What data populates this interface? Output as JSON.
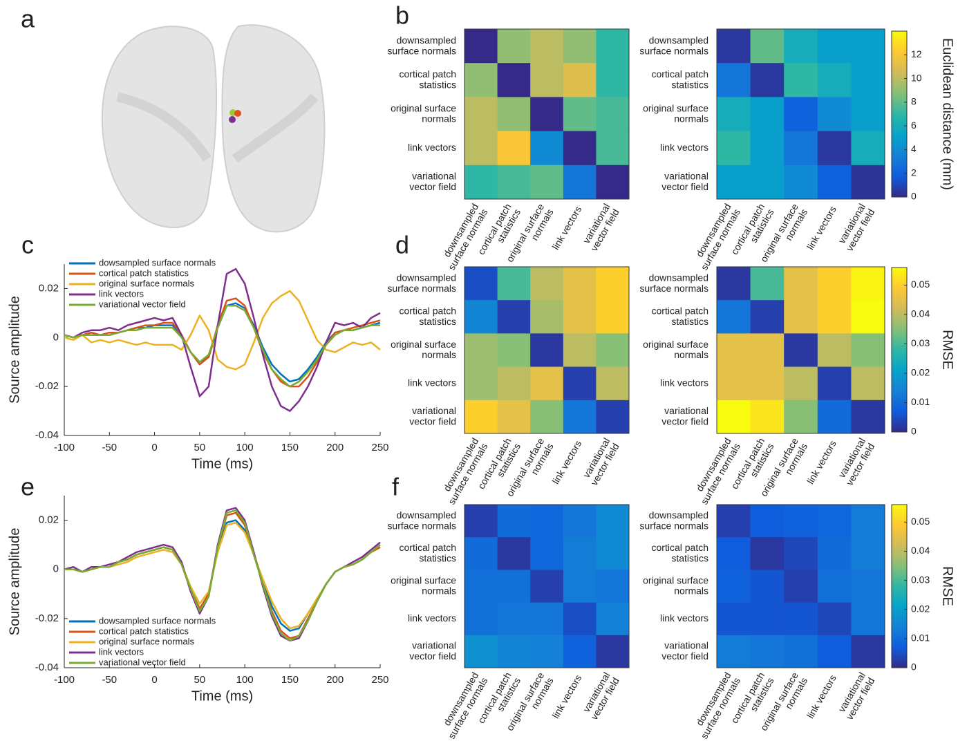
{
  "chart_data": [
    {
      "type": "image",
      "panel": "a"
    },
    {
      "type": "heatmap",
      "panel": "b",
      "categories": [
        "downsampled\nsurface normals",
        "cortical patch\nstatistics",
        "original surface\nnormals",
        "link vectors",
        "variational\nvector field"
      ],
      "matrices": [
        [
          [
            0,
            9,
            10,
            9,
            7
          ],
          [
            9,
            0,
            10,
            11,
            7
          ],
          [
            10,
            9,
            0,
            8,
            7.5
          ],
          [
            10,
            12,
            4,
            0,
            7.5
          ],
          [
            7,
            7.5,
            8,
            3,
            0
          ]
        ],
        [
          [
            0.5,
            8,
            6,
            5,
            5
          ],
          [
            3,
            0.5,
            7,
            6,
            5
          ],
          [
            6,
            5,
            2,
            4,
            5
          ],
          [
            7,
            5,
            3,
            0.5,
            6
          ],
          [
            5,
            5,
            4,
            2,
            0.3
          ]
        ]
      ],
      "zlim": [
        0,
        14
      ],
      "zticks": [
        0,
        2,
        4,
        6,
        8,
        10,
        12
      ],
      "zlabel": "Euclidean distance (mm)",
      "colormap": [
        "#352a87",
        "#0f5cdd",
        "#1481d6",
        "#06a4ca",
        "#2eb7a4",
        "#87bf77",
        "#d1bb59",
        "#fec832",
        "#f9fb0e"
      ]
    },
    {
      "type": "line",
      "panel": "c",
      "xlabel": "Time (ms)",
      "ylabel": "Source amplitude",
      "x": [
        -100,
        -90,
        -80,
        -70,
        -60,
        -50,
        -40,
        -30,
        -20,
        -10,
        0,
        10,
        20,
        30,
        40,
        50,
        60,
        70,
        80,
        90,
        100,
        110,
        120,
        130,
        140,
        150,
        160,
        170,
        180,
        190,
        200,
        210,
        220,
        230,
        240,
        250
      ],
      "series": [
        {
          "name": "dowsampled surface normals",
          "color": "#0072bd",
          "values": [
            0.001,
            0,
            0.001,
            0.002,
            0.001,
            0.001,
            0.002,
            0.003,
            0.004,
            0.004,
            0.005,
            0.005,
            0.005,
            0.001,
            -0.006,
            -0.01,
            -0.008,
            0.004,
            0.013,
            0.014,
            0.012,
            0.005,
            -0.004,
            -0.011,
            -0.015,
            -0.018,
            -0.017,
            -0.013,
            -0.008,
            -0.002,
            0.002,
            0.003,
            0.003,
            0.004,
            0.005,
            0.006
          ]
        },
        {
          "name": "cortical patch statistics",
          "color": "#d95319",
          "values": [
            0.001,
            0,
            0.001,
            0.002,
            0.001,
            0.002,
            0.002,
            0.003,
            0.004,
            0.005,
            0.005,
            0.006,
            0.006,
            0.001,
            -0.006,
            -0.011,
            -0.008,
            0.005,
            0.015,
            0.016,
            0.013,
            0.004,
            -0.006,
            -0.013,
            -0.018,
            -0.02,
            -0.02,
            -0.016,
            -0.01,
            -0.003,
            0.002,
            0.003,
            0.004,
            0.005,
            0.006,
            0.007
          ]
        },
        {
          "name": "original surface normals",
          "color": "#edb120",
          "values": [
            0,
            -0.001,
            0.001,
            -0.002,
            -0.001,
            -0.002,
            -0.001,
            -0.002,
            -0.003,
            -0.002,
            -0.003,
            -0.003,
            -0.003,
            -0.005,
            0.001,
            0.009,
            0.003,
            -0.009,
            -0.012,
            -0.013,
            -0.011,
            -0.002,
            0.008,
            0.014,
            0.017,
            0.019,
            0.015,
            0.007,
            -0.001,
            -0.005,
            -0.006,
            -0.004,
            -0.002,
            -0.003,
            -0.002,
            -0.005
          ]
        },
        {
          "name": "link vectors",
          "color": "#7e2f8e",
          "values": [
            0.001,
            0,
            0.002,
            0.003,
            0.003,
            0.004,
            0.003,
            0.005,
            0.006,
            0.007,
            0.008,
            0.007,
            0.008,
            0.001,
            -0.012,
            -0.024,
            -0.02,
            0.005,
            0.026,
            0.028,
            0.022,
            0.008,
            -0.007,
            -0.02,
            -0.028,
            -0.03,
            -0.026,
            -0.02,
            -0.012,
            -0.002,
            0.006,
            0.005,
            0.006,
            0.004,
            0.008,
            0.01
          ]
        },
        {
          "name": "variational vector field",
          "color": "#77ac30",
          "values": [
            0.001,
            0,
            0.001,
            0.001,
            0.001,
            0.001,
            0.002,
            0.003,
            0.003,
            0.004,
            0.004,
            0.004,
            0.004,
            0,
            -0.006,
            -0.01,
            -0.007,
            0.004,
            0.013,
            0.013,
            0.011,
            0.004,
            -0.005,
            -0.013,
            -0.017,
            -0.02,
            -0.018,
            -0.014,
            -0.009,
            -0.003,
            0.001,
            0.003,
            0.003,
            0.004,
            0.005,
            0.005
          ]
        }
      ],
      "xlim": [
        -100,
        250
      ],
      "xticks": [
        -100,
        -50,
        0,
        50,
        100,
        150,
        200,
        250
      ],
      "ylim": [
        -0.04,
        0.03
      ],
      "yticks": [
        -0.04,
        -0.02,
        0,
        0.02
      ],
      "legend": "upper left"
    },
    {
      "type": "heatmap",
      "panel": "d",
      "categories": [
        "downsampled\nsurface normals",
        "cortical patch\nstatistics",
        "original surface\nnormals",
        "link vectors",
        "variational\nvector field"
      ],
      "matrices": [
        [
          [
            0.005,
            0.03,
            0.04,
            0.045,
            0.05
          ],
          [
            0.015,
            0.003,
            0.038,
            0.045,
            0.05
          ],
          [
            0.037,
            0.035,
            0.002,
            0.04,
            0.035
          ],
          [
            0.037,
            0.04,
            0.045,
            0.003,
            0.04
          ],
          [
            0.05,
            0.045,
            0.035,
            0.012,
            0.003
          ]
        ],
        [
          [
            0.002,
            0.03,
            0.045,
            0.05,
            0.055
          ],
          [
            0.012,
            0.003,
            0.045,
            0.05,
            0.056
          ],
          [
            0.045,
            0.045,
            0.002,
            0.04,
            0.035
          ],
          [
            0.045,
            0.045,
            0.04,
            0.003,
            0.04
          ],
          [
            0.056,
            0.053,
            0.035,
            0.01,
            0.002
          ]
        ]
      ],
      "zlim": [
        0,
        0.056
      ],
      "zticks": [
        0,
        0.01,
        0.02,
        0.03,
        0.04,
        0.05
      ],
      "zlabel": "RMSE",
      "colormap": [
        "#352a87",
        "#0f5cdd",
        "#1481d6",
        "#06a4ca",
        "#2eb7a4",
        "#87bf77",
        "#d1bb59",
        "#fec832",
        "#f9fb0e"
      ]
    },
    {
      "type": "line",
      "panel": "e",
      "xlabel": "Time (ms)",
      "ylabel": "Source amplitude",
      "x": [
        -100,
        -90,
        -80,
        -70,
        -60,
        -50,
        -40,
        -30,
        -20,
        -10,
        0,
        10,
        20,
        30,
        40,
        50,
        60,
        70,
        80,
        90,
        100,
        110,
        120,
        130,
        140,
        150,
        160,
        170,
        180,
        190,
        200,
        210,
        220,
        230,
        240,
        250
      ],
      "series": [
        {
          "name": "dowsampled surface normals",
          "color": "#0072bd",
          "values": [
            0,
            0,
            -0.001,
            0,
            0.001,
            0.001,
            0.003,
            0.004,
            0.006,
            0.007,
            0.008,
            0.009,
            0.008,
            0.002,
            -0.008,
            -0.016,
            -0.01,
            0.008,
            0.019,
            0.02,
            0.016,
            0.006,
            -0.005,
            -0.015,
            -0.022,
            -0.025,
            -0.024,
            -0.018,
            -0.012,
            -0.006,
            -0.001,
            0.001,
            0.002,
            0.004,
            0.007,
            0.009
          ]
        },
        {
          "name": "cortical patch statistics",
          "color": "#d95319",
          "values": [
            0,
            0,
            -0.001,
            0,
            0.001,
            0.001,
            0.003,
            0.004,
            0.006,
            0.007,
            0.008,
            0.009,
            0.008,
            0.002,
            -0.008,
            -0.016,
            -0.01,
            0.009,
            0.022,
            0.023,
            0.018,
            0.006,
            -0.006,
            -0.017,
            -0.025,
            -0.028,
            -0.027,
            -0.02,
            -0.013,
            -0.006,
            -0.001,
            0.001,
            0.002,
            0.004,
            0.007,
            0.009
          ]
        },
        {
          "name": "original surface normals",
          "color": "#edb120",
          "values": [
            0,
            0,
            -0.001,
            0,
            0.001,
            0.001,
            0.002,
            0.003,
            0.005,
            0.006,
            0.007,
            0.008,
            0.007,
            0.002,
            -0.007,
            -0.014,
            -0.009,
            0.007,
            0.018,
            0.019,
            0.015,
            0.006,
            -0.004,
            -0.013,
            -0.02,
            -0.024,
            -0.023,
            -0.018,
            -0.012,
            -0.006,
            -0.001,
            0.001,
            0.002,
            0.004,
            0.007,
            0.01
          ]
        },
        {
          "name": "link vectors",
          "color": "#7e2f8e",
          "values": [
            0,
            0.001,
            -0.001,
            0.001,
            0.001,
            0.002,
            0.003,
            0.005,
            0.007,
            0.008,
            0.009,
            0.01,
            0.009,
            0.003,
            -0.009,
            -0.018,
            -0.011,
            0.01,
            0.024,
            0.025,
            0.02,
            0.007,
            -0.007,
            -0.019,
            -0.027,
            -0.029,
            -0.028,
            -0.021,
            -0.013,
            -0.006,
            -0.001,
            0.001,
            0.003,
            0.005,
            0.008,
            0.011
          ]
        },
        {
          "name": "variational vector field",
          "color": "#77ac30",
          "values": [
            0,
            0,
            -0.001,
            0,
            0.001,
            0.001,
            0.003,
            0.004,
            0.006,
            0.007,
            0.008,
            0.009,
            0.008,
            0.002,
            -0.008,
            -0.017,
            -0.011,
            0.009,
            0.023,
            0.024,
            0.019,
            0.006,
            -0.006,
            -0.018,
            -0.026,
            -0.029,
            -0.027,
            -0.021,
            -0.013,
            -0.006,
            -0.001,
            0.001,
            0.002,
            0.004,
            0.007,
            0.01
          ]
        }
      ],
      "xlim": [
        -100,
        250
      ],
      "xticks": [
        -100,
        -50,
        0,
        50,
        100,
        150,
        200,
        250
      ],
      "ylim": [
        -0.04,
        0.03
      ],
      "yticks": [
        -0.04,
        -0.02,
        0,
        0.02
      ],
      "legend": "lower left"
    },
    {
      "type": "heatmap",
      "panel": "f",
      "categories": [
        "downsampled\nsurface normals",
        "cortical patch\nstatistics",
        "original surface\nnormals",
        "link vectors",
        "variational\nvector field"
      ],
      "matrices": [
        [
          [
            0.003,
            0.01,
            0.009,
            0.012,
            0.016
          ],
          [
            0.01,
            0.002,
            0.009,
            0.013,
            0.016
          ],
          [
            0.011,
            0.011,
            0.003,
            0.013,
            0.012
          ],
          [
            0.011,
            0.012,
            0.012,
            0.005,
            0.014
          ],
          [
            0.017,
            0.015,
            0.014,
            0.008,
            0.002
          ]
        ],
        [
          [
            0.003,
            0.007,
            0.008,
            0.009,
            0.013
          ],
          [
            0.007,
            0.002,
            0.004,
            0.01,
            0.013
          ],
          [
            0.008,
            0.006,
            0.003,
            0.011,
            0.012
          ],
          [
            0.006,
            0.006,
            0.006,
            0.004,
            0.012
          ],
          [
            0.013,
            0.012,
            0.011,
            0.007,
            0.002
          ]
        ]
      ],
      "zlim": [
        0,
        0.056
      ],
      "zticks": [
        0,
        0.01,
        0.02,
        0.03,
        0.04,
        0.05
      ],
      "zlabel": "RMSE",
      "colormap": [
        "#352a87",
        "#0f5cdd",
        "#1481d6",
        "#06a4ca",
        "#2eb7a4",
        "#87bf77",
        "#d1bb59",
        "#fec832",
        "#f9fb0e"
      ]
    }
  ]
}
